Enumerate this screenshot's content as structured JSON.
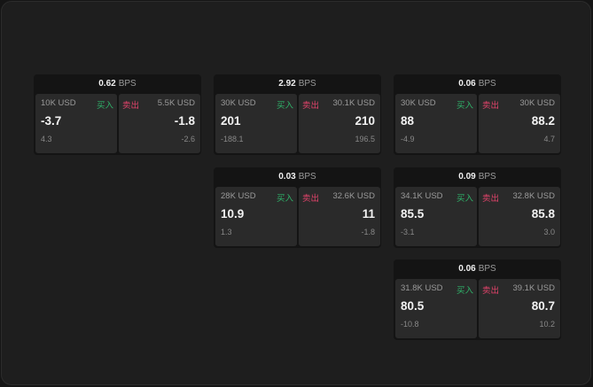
{
  "unit": "BPS",
  "buy_label": "买入",
  "sell_label": "卖出",
  "widgets": [
    {
      "bps": "0.62",
      "buy": {
        "size": "10K USD",
        "price": "-3.7",
        "change": "4.3"
      },
      "sell": {
        "size": "5.5K USD",
        "price": "-1.8",
        "change": "-2.6"
      }
    },
    {
      "bps": "2.92",
      "buy": {
        "size": "30K USD",
        "price": "201",
        "change": "-188.1"
      },
      "sell": {
        "size": "30.1K USD",
        "price": "210",
        "change": "196.5"
      }
    },
    {
      "bps": "0.06",
      "buy": {
        "size": "30K USD",
        "price": "88",
        "change": "-4.9"
      },
      "sell": {
        "size": "30K USD",
        "price": "88.2",
        "change": "4.7"
      }
    },
    {
      "bps": "0.03",
      "buy": {
        "size": "28K USD",
        "price": "10.9",
        "change": "1.3"
      },
      "sell": {
        "size": "32.6K USD",
        "price": "11",
        "change": "-1.8"
      }
    },
    {
      "bps": "0.09",
      "buy": {
        "size": "34.1K USD",
        "price": "85.5",
        "change": "-3.1"
      },
      "sell": {
        "size": "32.8K USD",
        "price": "85.8",
        "change": "3.0"
      }
    },
    {
      "bps": "0.06",
      "buy": {
        "size": "31.8K USD",
        "price": "80.5",
        "change": "-10.8"
      },
      "sell": {
        "size": "39.1K USD",
        "price": "80.7",
        "change": "10.2"
      }
    }
  ]
}
